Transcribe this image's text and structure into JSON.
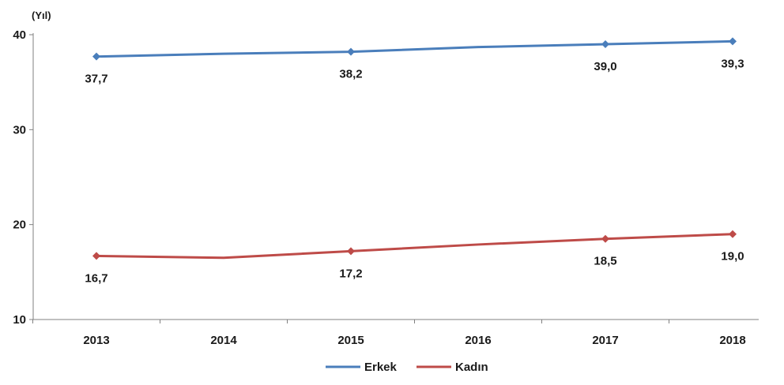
{
  "chart_data": {
    "type": "line",
    "ylabel": "(Yıl)",
    "ylim": [
      10,
      40
    ],
    "yticks": [
      10,
      20,
      30,
      40
    ],
    "categories": [
      "2013",
      "2014",
      "2015",
      "2016",
      "2017",
      "2018"
    ],
    "series": [
      {
        "name": "Erkek",
        "color": "#4a7ebb",
        "values": [
          37.7,
          38.0,
          38.2,
          38.7,
          39.0,
          39.3
        ],
        "labels": [
          "37,7",
          "",
          "38,2",
          "",
          "39,0",
          "39,3"
        ]
      },
      {
        "name": "Kadın",
        "color": "#be4b48",
        "values": [
          16.7,
          16.5,
          17.2,
          17.9,
          18.5,
          19.0
        ],
        "labels": [
          "16,7",
          "",
          "17,2",
          "",
          "18,5",
          "19,0"
        ]
      }
    ],
    "grid": false,
    "legend_position": "bottom"
  }
}
